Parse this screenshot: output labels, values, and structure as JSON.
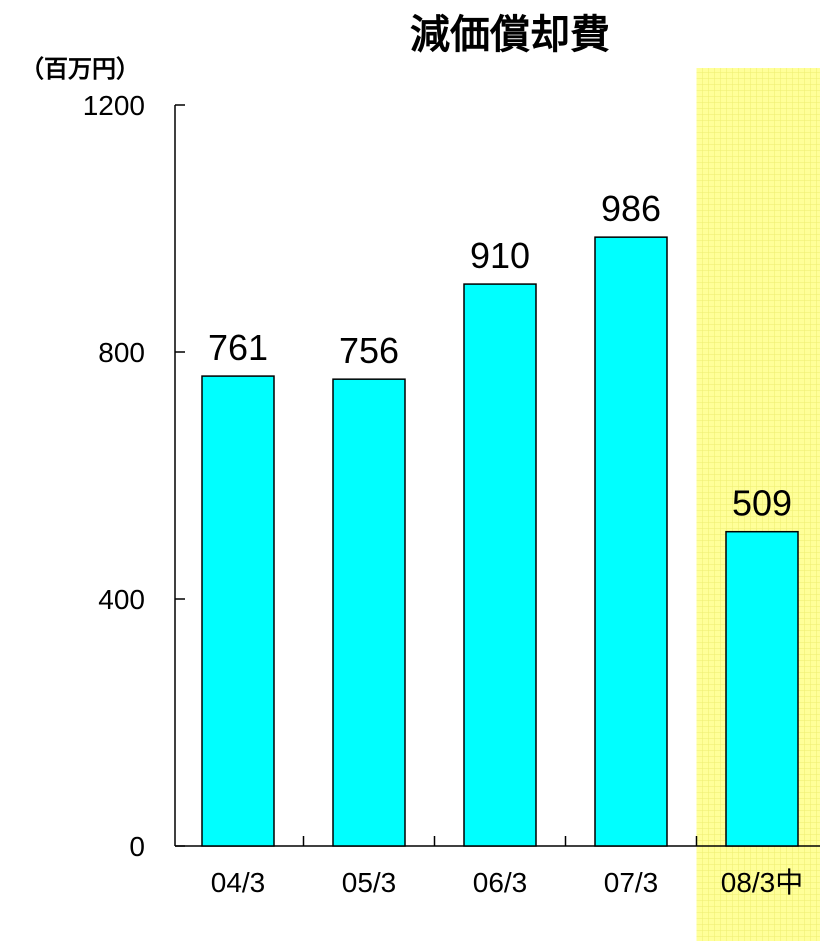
{
  "chart_data": {
    "type": "bar",
    "title": "減価償却費",
    "unit_label": "（百万円）",
    "categories": [
      "04/3",
      "05/3",
      "06/3",
      "07/3",
      "08/3中"
    ],
    "values": [
      761,
      756,
      910,
      986,
      509
    ],
    "ylim": [
      0,
      1200
    ],
    "yticks": [
      0,
      400,
      800,
      1200
    ],
    "grid": false,
    "bar_color": "#00FFFF",
    "highlight_category": "08/3中",
    "highlight_color": "#FFFF99"
  }
}
